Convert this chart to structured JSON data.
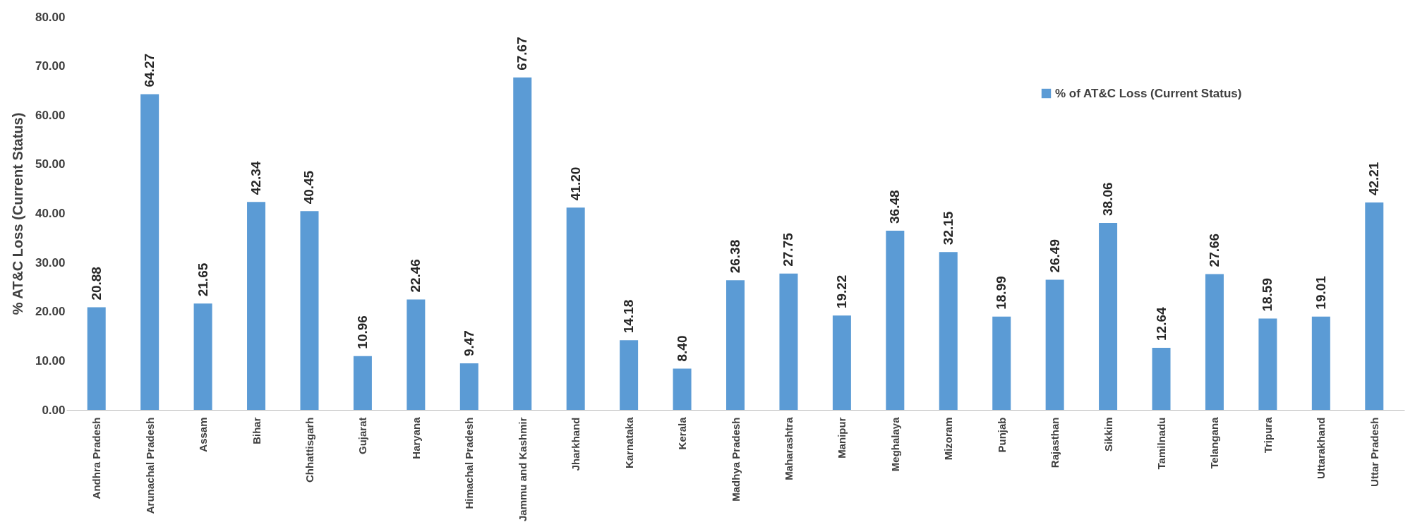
{
  "chart_data": {
    "type": "bar",
    "ylabel": "% AT&C Loss (Current Status)",
    "categories": [
      "Andhra Pradesh",
      "Arunachal Pradesh",
      "Assam",
      "Bihar",
      "Chhattisgarh",
      "Gujarat",
      "Haryana",
      "Himachal Pradesh",
      "Jammu and Kashmir",
      "Jharkhand",
      "Karnataka",
      "Kerala",
      "Madhya Pradesh",
      "Maharashtra",
      "Manipur",
      "Meghalaya",
      "Mizoram",
      "Punjab",
      "Rajasthan",
      "Sikkim",
      "Tamilnadu",
      "Telangana",
      "Tripura",
      "Uttarakhand",
      "Uttar Pradesh"
    ],
    "series": [
      {
        "name": "% of AT&C Loss (Current Status)",
        "color": "#5b9bd5",
        "values": [
          20.88,
          64.27,
          21.65,
          42.34,
          40.45,
          10.96,
          22.46,
          9.47,
          67.67,
          41.2,
          14.18,
          8.4,
          26.38,
          27.75,
          19.22,
          36.48,
          32.15,
          18.99,
          26.49,
          38.06,
          12.64,
          27.66,
          18.59,
          19.01,
          42.21
        ],
        "value_labels": [
          "20.88",
          "64.27",
          "21.65",
          "42.34",
          "40.45",
          "10.96",
          "22.46",
          "9.47",
          "67.67",
          "41.20",
          "14.18",
          "8.40",
          "26.38",
          "27.75",
          "19.22",
          "36.48",
          "32.15",
          "18.99",
          "26.49",
          "38.06",
          "12.64",
          "27.66",
          "18.59",
          "19.01",
          "42.21"
        ]
      }
    ],
    "ylim": [
      0,
      80
    ],
    "yticks": [
      {
        "value": 0,
        "label": "0.00"
      },
      {
        "value": 10,
        "label": "10.00"
      },
      {
        "value": 20,
        "label": "20.00"
      },
      {
        "value": 30,
        "label": "30.00"
      },
      {
        "value": 40,
        "label": "40.00"
      },
      {
        "value": 50,
        "label": "50.00"
      },
      {
        "value": 60,
        "label": "60.00"
      },
      {
        "value": 70,
        "label": "70.00"
      },
      {
        "value": 80,
        "label": "80.00"
      }
    ],
    "grid": false,
    "legend": "top right"
  }
}
